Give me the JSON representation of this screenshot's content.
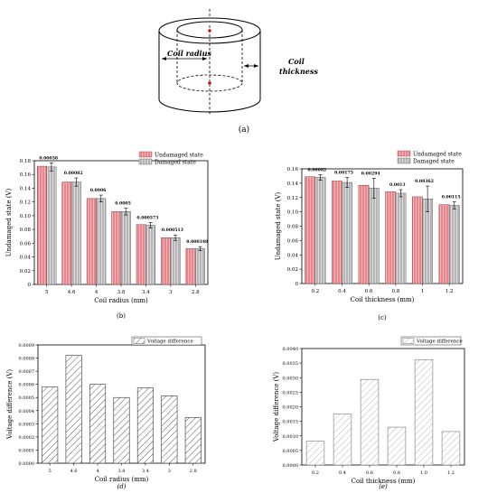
{
  "diagram": {
    "label": "(a)",
    "coil_radius_label": "Coil radius",
    "coil_thickness_label": [
      "Coil",
      "thickness"
    ]
  },
  "chart_data": [
    {
      "id": "b",
      "type": "bar",
      "panel_label": "(b)",
      "xlabel": "Coil radius (mm)",
      "ylabel": "Undamaged state (V)",
      "categories": [
        "5",
        "4.6",
        "4",
        "3.8",
        "3.4",
        "3",
        "2.8"
      ],
      "ylim": [
        0,
        0.18
      ],
      "yticks": [
        "0",
        "0.02",
        "0.04",
        "0.06",
        "0.08",
        "0.10",
        "0.12",
        "0.14",
        "0.16",
        "0.18"
      ],
      "series": [
        {
          "name": "Undamaged state",
          "values": [
            0.172,
            0.149,
            0.125,
            0.106,
            0.087,
            0.068,
            0.052
          ]
        },
        {
          "name": "Damaged state",
          "values": [
            0.171,
            0.149,
            0.125,
            0.106,
            0.086,
            0.068,
            0.052
          ],
          "errors": [
            0.006,
            0.006,
            0.005,
            0.005,
            0.004,
            0.004,
            0.003
          ]
        }
      ],
      "data_labels": [
        "0.00058",
        "0.00082",
        "0.0006",
        "0.0005",
        "0.000573",
        "0.000513",
        "0.000348"
      ],
      "legend_position": "top-right",
      "colors": [
        "#e8868b",
        "#bdbdbd"
      ]
    },
    {
      "id": "c",
      "type": "bar",
      "panel_label": "(c)",
      "xlabel": "Coil thickness (mm)",
      "ylabel": "Undamaged state (V)",
      "categories": [
        "0.2",
        "0.4",
        "0.6",
        "0.8",
        "1",
        "1.2"
      ],
      "ylim": [
        0,
        0.16
      ],
      "yticks": [
        "0",
        "0.02",
        "0.04",
        "0.06",
        "0.08",
        "0.10",
        "0.12",
        "0.14",
        "0.16"
      ],
      "series": [
        {
          "name": "Undamaged state",
          "values": [
            0.149,
            0.143,
            0.137,
            0.128,
            0.121,
            0.11
          ]
        },
        {
          "name": "Damaged state",
          "values": [
            0.148,
            0.141,
            0.133,
            0.126,
            0.118,
            0.109
          ],
          "errors": [
            0.004,
            0.007,
            0.014,
            0.005,
            0.018,
            0.005
          ]
        }
      ],
      "data_labels": [
        "0.00082",
        "0.00175",
        "0.00294",
        "0.0013",
        "0.00362",
        "0.00115"
      ],
      "legend_position": "top-right",
      "colors": [
        "#e8868b",
        "#bdbdbd"
      ]
    },
    {
      "id": "d",
      "type": "bar",
      "panel_label": "(d)",
      "xlabel": "Coil radius (mm)",
      "ylabel": "Voltage difference (V)",
      "categories": [
        "5",
        "4.6",
        "4",
        "3.8",
        "3.4",
        "3",
        "2.8"
      ],
      "ylim": [
        0,
        0.0009
      ],
      "yticks": [
        "0.0000",
        "0.0001",
        "0.0002",
        "0.0003",
        "0.0004",
        "0.0005",
        "0.0006",
        "0.0007",
        "0.0008",
        "0.0009"
      ],
      "series": [
        {
          "name": "Voltage difference",
          "values": [
            0.00058,
            0.00082,
            0.0006,
            0.0005,
            0.000573,
            0.000513,
            0.000348
          ]
        }
      ],
      "legend_position": "top-right"
    },
    {
      "id": "e",
      "type": "bar",
      "panel_label": "(e)",
      "xlabel": "Coil thickness (mm)",
      "ylabel": "Voltage difference (V)",
      "categories": [
        "0.2",
        "0.4",
        "0.6",
        "0.8",
        "1.0",
        "1.2"
      ],
      "ylim": [
        0,
        0.004
      ],
      "yticks": [
        "0.0000",
        "0.0005",
        "0.0010",
        "0.0015",
        "0.0020",
        "0.0025",
        "0.0030",
        "0.0035",
        "0.0040"
      ],
      "series": [
        {
          "name": "Voltage difference",
          "values": [
            0.00082,
            0.00175,
            0.00294,
            0.0013,
            0.00362,
            0.00115
          ]
        }
      ],
      "legend_position": "top-right"
    }
  ]
}
